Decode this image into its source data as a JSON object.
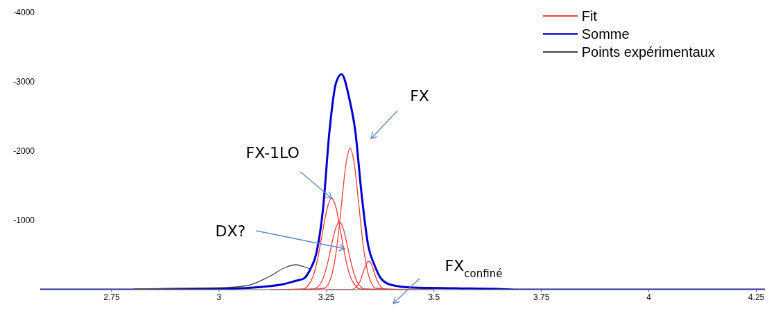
{
  "chart_data": {
    "type": "line",
    "xlim": [
      2.584,
      4.27
    ],
    "xticks": [
      2.75,
      3,
      3.25,
      3.5,
      3.75,
      4,
      4.25
    ],
    "ylim": [
      0,
      -4000
    ],
    "yticks": [
      -4000,
      -3000,
      -2000,
      -1000
    ],
    "grid": false,
    "legend": "top right",
    "marker": "none",
    "line_style": "solid",
    "series": [
      {
        "name": "Fit",
        "color": "#f03c3c",
        "x": [
          3.12,
          3.196,
          3.207,
          3.218,
          3.229,
          3.24,
          3.251,
          3.262,
          3.273,
          3.284,
          3.295,
          3.306,
          3.317,
          3.328,
          3.42
        ],
        "values": [
          0,
          -10,
          -60,
          -180,
          -430,
          -800,
          -1160,
          -1320,
          -1160,
          -800,
          -430,
          -180,
          -60,
          -10,
          0
        ]
      },
      {
        "color": "#f03c3c",
        "x": [
          3.15,
          3.22,
          3.23,
          3.24,
          3.25,
          3.26,
          3.27,
          3.28,
          3.29,
          3.3,
          3.31,
          3.32,
          3.33,
          3.34,
          3.42
        ],
        "values": [
          0,
          -10,
          -40,
          -130,
          -320,
          -590,
          -860,
          -980,
          -860,
          -590,
          -320,
          -130,
          -40,
          -10,
          0
        ]
      },
      {
        "color": "#f03c3c",
        "x": [
          3.2,
          3.245,
          3.255,
          3.265,
          3.275,
          3.285,
          3.295,
          3.305,
          3.315,
          3.325,
          3.335,
          3.345,
          3.355,
          3.365,
          3.45
        ],
        "values": [
          0,
          -20,
          -90,
          -280,
          -660,
          -1240,
          -1800,
          -2040,
          -1800,
          -1240,
          -660,
          -280,
          -90,
          -20,
          0
        ]
      },
      {
        "color": "#f03c3c",
        "x": [
          3.25,
          3.309,
          3.316,
          3.322,
          3.329,
          3.335,
          3.342,
          3.348,
          3.355,
          3.361,
          3.368,
          3.374,
          3.381,
          3.387,
          3.5
        ],
        "values": [
          0,
          0,
          -20,
          -60,
          -130,
          -250,
          -360,
          -410,
          -360,
          -250,
          -130,
          -60,
          -20,
          0,
          0
        ]
      },
      {
        "name": "Somme",
        "color": "#0000cc",
        "x": [
          2.584,
          2.8,
          3.0,
          3.1,
          3.15,
          3.18,
          3.197,
          3.212,
          3.227,
          3.242,
          3.257,
          3.272,
          3.285,
          3.302,
          3.317,
          3.332,
          3.347,
          3.362,
          3.377,
          3.4,
          3.45,
          3.55,
          3.65,
          3.7,
          4.27
        ],
        "values": [
          0,
          0,
          -10,
          -40,
          -80,
          -130,
          -160,
          -290,
          -540,
          -1170,
          -2290,
          -2980,
          -3110,
          -2790,
          -2290,
          -1360,
          -640,
          -350,
          -160,
          -70,
          -30,
          -20,
          -10,
          0,
          0
        ]
      },
      {
        "name": "Points expérimentaux",
        "color": "#404040",
        "x": [
          2.8,
          2.9,
          3.015,
          3.067,
          3.117,
          3.158,
          3.178,
          3.198,
          3.212
        ],
        "values": [
          -10,
          -20,
          -30,
          -60,
          -190,
          -330,
          -360,
          -330,
          -300
        ]
      }
    ],
    "annotations": [
      "FX",
      {
        "text": "FX-1LO",
        "x": 3.262,
        "y": -1320
      },
      {
        "text": "DX?",
        "x": 3.293,
        "y": -590
      },
      "FX$_{confiné}$"
    ]
  }
}
